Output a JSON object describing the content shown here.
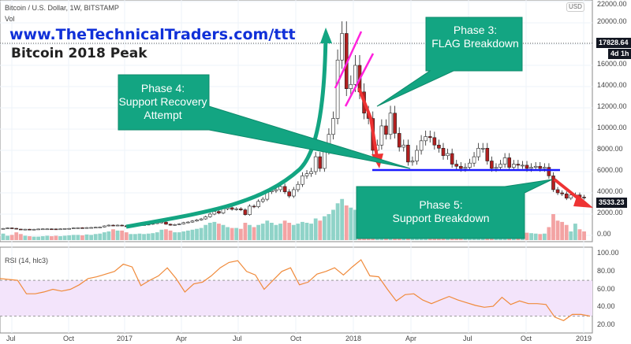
{
  "header": {
    "symbol": "Bitcoin / U.S. Dollar, 1W, BITSTAMP",
    "vol_label": "Vol",
    "currency": "USD"
  },
  "overlay": {
    "url": "www.TheTechnicalTraders.com/ttt",
    "title": "Bitcoin 2018 Peak"
  },
  "annotations": [
    {
      "id": "phase3",
      "lines": [
        "Phase 3:",
        "FLAG Breakdown"
      ]
    },
    {
      "id": "phase4",
      "lines": [
        "Phase 4:",
        "Support Recovery",
        "Attempt"
      ]
    },
    {
      "id": "phase5",
      "lines": [
        "Phase 5:",
        "Support Breakdown"
      ]
    }
  ],
  "price_tags": {
    "last_close_marker": "17828.64",
    "countdown": "4d 1h",
    "current": "3533.23"
  },
  "colors": {
    "annotation": "#13a582",
    "up": "#ffffff",
    "down": "#b21f1f",
    "vol_up": "#8fd3c8",
    "vol_down": "#f3a3a3",
    "rsi": "#f08a3a",
    "support": "#1a1aff",
    "flag": "#ff22dd",
    "arrow": "#ee3333"
  },
  "chart_data": {
    "type": "candlestick",
    "title": "Bitcoin / U.S. Dollar, 1W, BITSTAMP",
    "x_tick_labels": [
      "Jul",
      "Oct",
      "2017",
      "Apr",
      "Jul",
      "Oct",
      "2018",
      "Apr",
      "Jul",
      "Oct",
      "2019"
    ],
    "price_axis": {
      "ticks": [
        "22000.00",
        "20000.00",
        "16000.00",
        "14000.00",
        "12000.00",
        "10000.00",
        "8000.00",
        "6000.00",
        "4000.00",
        "2000.00",
        "0.00"
      ],
      "ylim": [
        0,
        22000
      ]
    },
    "weekly_close": [
      650,
      700,
      660,
      590,
      580,
      580,
      570,
      575,
      600,
      610,
      610,
      605,
      600,
      610,
      640,
      650,
      700,
      720,
      700,
      730,
      740,
      760,
      790,
      890,
      960,
      930,
      960,
      900,
      820,
      900,
      920,
      1000,
      1000,
      1050,
      1120,
      1180,
      1250,
      1050,
      960,
      1020,
      1080,
      1200,
      1250,
      1350,
      1450,
      1550,
      1750,
      2000,
      2250,
      2100,
      2500,
      2600,
      2450,
      2500,
      2400,
      1950,
      2750,
      2700,
      3200,
      3400,
      4100,
      4200,
      4300,
      4600,
      4100,
      3700,
      4300,
      4800,
      5600,
      5800,
      6000,
      7400,
      6300,
      8000,
      9500,
      11000,
      16500,
      19000,
      13800,
      14200,
      16000,
      13500,
      11500,
      11000,
      8000,
      8500,
      10300,
      9500,
      11500,
      9600,
      8300,
      8500,
      6900,
      7000,
      8000,
      8900,
      9300,
      9200,
      8500,
      8200,
      7500,
      7700,
      6700,
      6500,
      6300,
      6400,
      6800,
      7400,
      8200,
      8200,
      7000,
      6300,
      6400,
      6700,
      7300,
      6400,
      6700,
      6600,
      6600,
      6300,
      6400,
      6500,
      6300,
      6400,
      5600,
      4300,
      4000,
      3900,
      3500,
      3800,
      3800,
      3600,
      3550
    ],
    "volume_relative": [
      15,
      10,
      12,
      18,
      14,
      10,
      9,
      8,
      8,
      9,
      10,
      9,
      10,
      9,
      10,
      11,
      12,
      12,
      11,
      13,
      12,
      14,
      15,
      18,
      20,
      25,
      22,
      22,
      18,
      14,
      14,
      15,
      14,
      15,
      16,
      18,
      24,
      25,
      22,
      18,
      18,
      20,
      22,
      24,
      26,
      28,
      35,
      40,
      42,
      38,
      35,
      30,
      28,
      28,
      26,
      40,
      35,
      30,
      35,
      38,
      45,
      40,
      35,
      38,
      45,
      40,
      35,
      38,
      42,
      40,
      38,
      50,
      45,
      55,
      60,
      70,
      85,
      95,
      80,
      75,
      70,
      80,
      75,
      60,
      72,
      50,
      45,
      40,
      45,
      50,
      40,
      35,
      40,
      35,
      38,
      40,
      36,
      32,
      30,
      28,
      30,
      28,
      32,
      30,
      28,
      26,
      25,
      28,
      32,
      30,
      28,
      30,
      26,
      24,
      22,
      24,
      20,
      18,
      18,
      17,
      16,
      15,
      14,
      15,
      30,
      60,
      45,
      42,
      35,
      20,
      38,
      25,
      20
    ],
    "rsi": {
      "label": "RSI (14, hlc3)",
      "ticks": [
        "100.00",
        "80.00",
        "60.00",
        "40.00",
        "20.00"
      ],
      "band": [
        30,
        70
      ],
      "values": [
        72,
        71,
        70,
        55,
        55,
        57,
        60,
        58,
        60,
        65,
        72,
        74,
        77,
        80,
        88,
        85,
        64,
        70,
        75,
        84,
        72,
        57,
        66,
        68,
        75,
        84,
        90,
        92,
        80,
        76,
        60,
        70,
        80,
        84,
        65,
        68,
        77,
        80,
        84,
        76,
        85,
        93,
        75,
        74,
        60,
        47,
        54,
        55,
        48,
        44,
        48,
        52,
        48,
        45,
        42,
        40,
        41,
        51,
        43,
        47,
        44,
        44,
        43,
        29,
        25,
        32,
        32,
        30
      ]
    }
  }
}
